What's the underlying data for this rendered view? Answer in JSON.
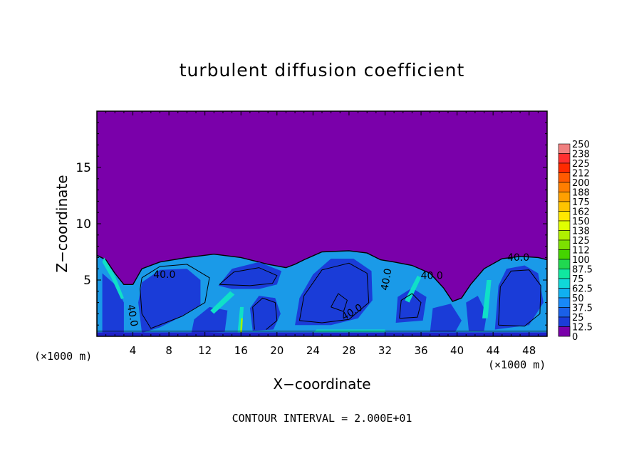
{
  "chart_data": {
    "type": "heatmap",
    "title": "turbulent diffusion coefficient",
    "xlabel": "X−coordinate",
    "ylabel": "Z−coordinate",
    "x_unit": "(×1000 m)",
    "y_unit": "(×1000 m)",
    "xlim": [
      0,
      50
    ],
    "ylim": [
      0,
      20
    ],
    "x_ticks": [
      4,
      8,
      12,
      16,
      20,
      24,
      28,
      32,
      36,
      40,
      44,
      48
    ],
    "y_ticks": [
      5,
      10,
      15
    ],
    "contour_labels": [
      "40.0",
      "40.0",
      "40.0",
      "40.0",
      "40.0",
      "40.0"
    ],
    "footnote": "CONTOUR INTERVAL = 2.000E+01",
    "colorbar": {
      "levels": [
        "250",
        "238",
        "225",
        "212",
        "200",
        "188",
        "175",
        "162",
        "150",
        "138",
        "125",
        "112",
        "100",
        "87.5",
        "75",
        "62.5",
        "50",
        "37.5",
        "25",
        "12.5",
        "0"
      ],
      "colors": [
        "#f08080",
        "#ff3030",
        "#ff2a00",
        "#ff5a00",
        "#ff7e00",
        "#ffa000",
        "#ffc400",
        "#ffe800",
        "#e0ff00",
        "#b0f000",
        "#7ce000",
        "#44d400",
        "#20d850",
        "#10e8a0",
        "#10d8d8",
        "#10b0f0",
        "#1888f8",
        "#1a60e8",
        "#1a3cd8",
        "#2020c8",
        "#7a00aa"
      ]
    }
  }
}
